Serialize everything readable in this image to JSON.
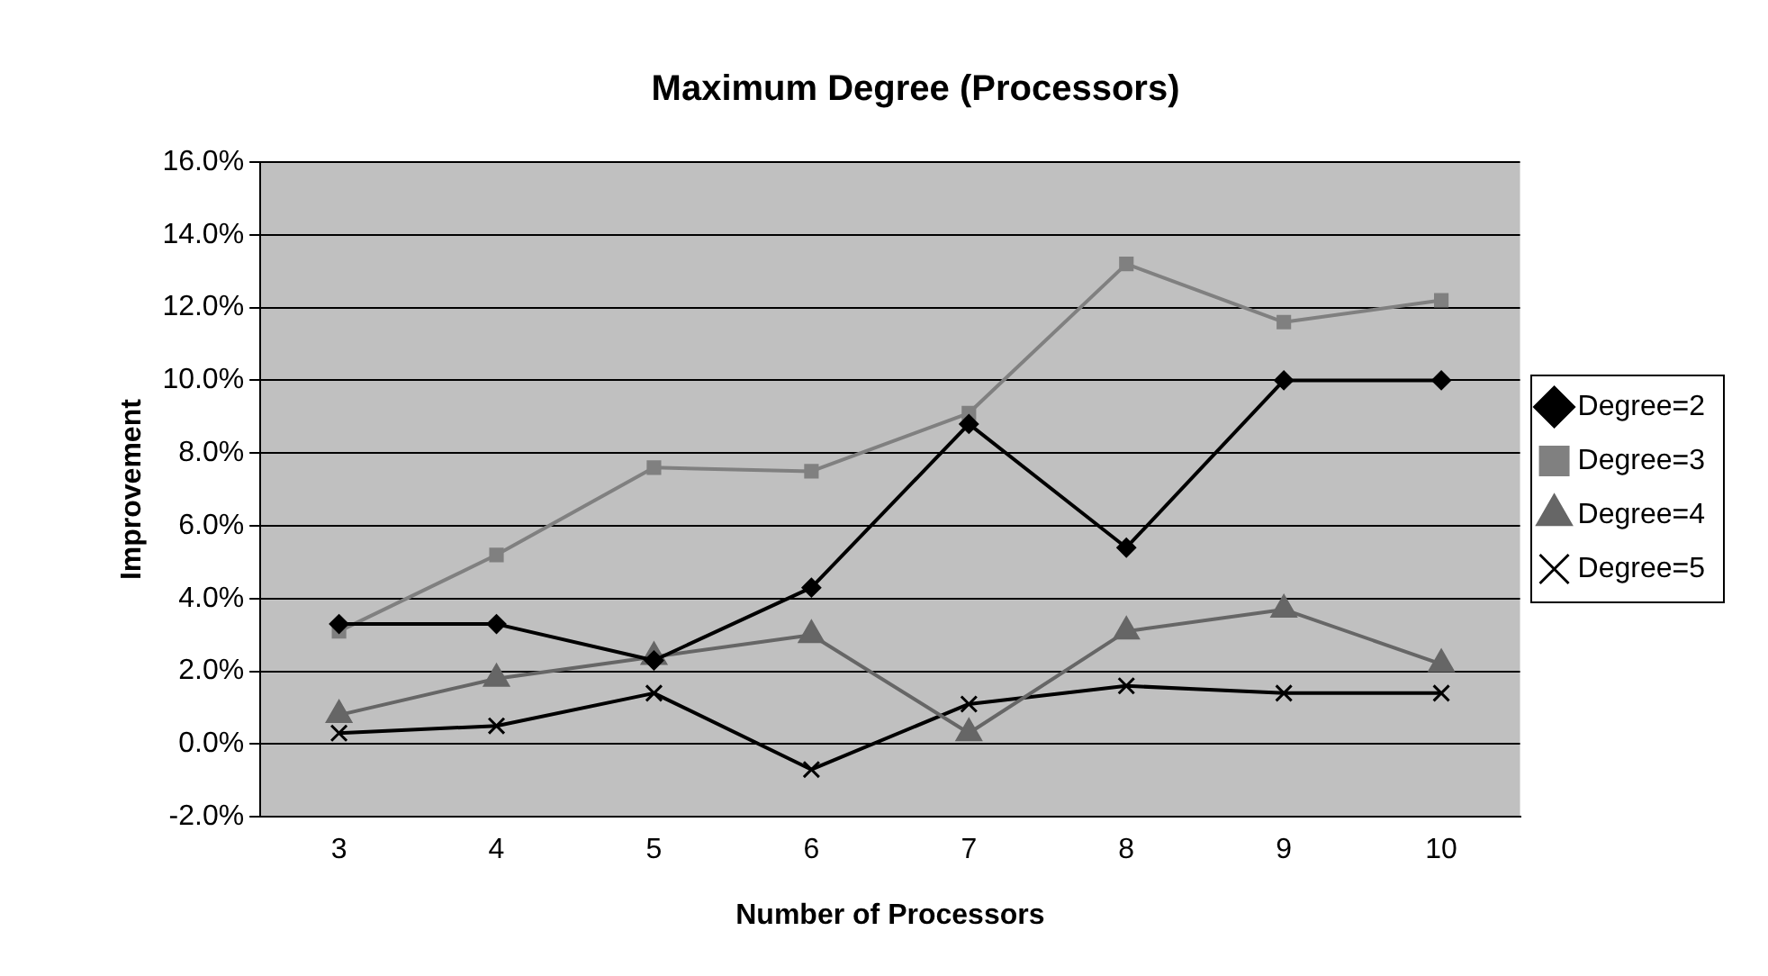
{
  "chart_data": {
    "type": "line",
    "title": "Maximum Degree (Processors)",
    "xlabel": "Number of Processors",
    "ylabel": "Improvement",
    "categories": [
      "3",
      "4",
      "5",
      "6",
      "7",
      "8",
      "9",
      "10"
    ],
    "series": [
      {
        "name": "Degree=2",
        "color": "#000000",
        "marker": "diamond",
        "values": [
          3.3,
          3.3,
          2.3,
          4.3,
          8.8,
          5.4,
          10.0,
          10.0
        ]
      },
      {
        "name": "Degree=3",
        "color": "#808080",
        "marker": "square",
        "values": [
          3.1,
          5.2,
          7.6,
          7.5,
          9.1,
          13.2,
          11.6,
          12.2
        ]
      },
      {
        "name": "Degree=4",
        "color": "#666666",
        "marker": "triangle",
        "values": [
          0.8,
          1.8,
          2.4,
          3.0,
          0.3,
          3.1,
          3.7,
          2.2
        ]
      },
      {
        "name": "Degree=5",
        "color": "#000000",
        "marker": "cross",
        "values": [
          0.3,
          0.5,
          1.4,
          -0.7,
          1.1,
          1.6,
          1.4,
          1.4
        ]
      }
    ],
    "ylim": [
      -2,
      16
    ],
    "yticks": [
      {
        "value": -2,
        "label": "-2.0%"
      },
      {
        "value": 0,
        "label": "0.0%"
      },
      {
        "value": 2,
        "label": "2.0%"
      },
      {
        "value": 4,
        "label": "4.0%"
      },
      {
        "value": 6,
        "label": "6.0%"
      },
      {
        "value": 8,
        "label": "8.0%"
      },
      {
        "value": 10,
        "label": "10.0%"
      },
      {
        "value": 12,
        "label": "12.0%"
      },
      {
        "value": 14,
        "label": "14.0%"
      },
      {
        "value": 16,
        "label": "16.0%"
      }
    ],
    "grid": "y",
    "legend": "right",
    "line_style": "solid"
  }
}
